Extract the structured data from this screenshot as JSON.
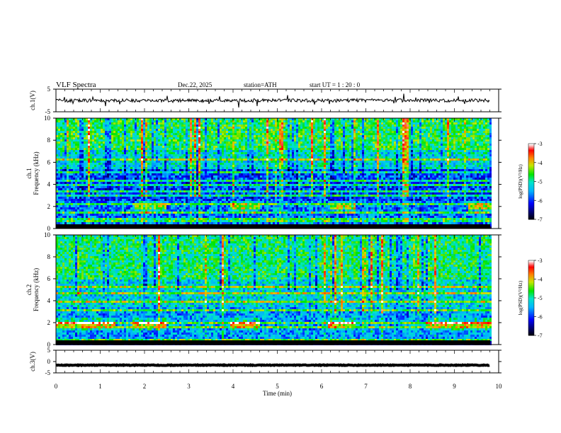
{
  "header": {
    "title": "VLF  Spectra",
    "date": "Dec.22, 2025",
    "station": "station=ATH",
    "start_ut": "start  UT  =   1 : 20 : 0"
  },
  "chart_data": [
    {
      "id": "ch1-waveform",
      "type": "line",
      "ylabel": "ch.1(V)",
      "ylim": [
        -5,
        5
      ],
      "yticks": [
        "5",
        "-5"
      ],
      "xlim": [
        0,
        10
      ],
      "x_end": 9.8,
      "baseline": 0,
      "amplitude": 1.5,
      "series_color": "#000000"
    },
    {
      "id": "ch1-spectrogram",
      "type": "heatmap",
      "ylabel": "ch.1\nFrequency (kHz)",
      "ylim": [
        0,
        10
      ],
      "yticks": [
        "0",
        "2",
        "4",
        "6",
        "8",
        "10"
      ],
      "xlim": [
        0,
        10
      ],
      "x_end": 9.8,
      "colorbar": {
        "label": "log(PSD)(V²/Hz)",
        "range": [
          -7,
          -3
        ],
        "ticks": [
          "-3",
          "-4",
          "-5",
          "-6",
          "-7"
        ]
      },
      "bands_khz": [
        0.3,
        0.7,
        1.0,
        1.6,
        2.3,
        3.0,
        3.4,
        4.0,
        4.5,
        5.2,
        6.4
      ],
      "banded_segments_min": [
        [
          1.75,
          2.45
        ],
        [
          3.9,
          4.6
        ],
        [
          6.15,
          6.75
        ],
        [
          9.3,
          9.8
        ]
      ]
    },
    {
      "id": "ch2-spectrogram",
      "type": "heatmap",
      "ylabel": "ch.2\nFrequency (kHz)",
      "ylim": [
        0,
        10
      ],
      "yticks": [
        "0",
        "2",
        "4",
        "6",
        "8",
        "10"
      ],
      "xlim": [
        0,
        10
      ],
      "x_end": 9.8,
      "colorbar": {
        "label": "log(PSD)(V²/Hz)",
        "range": [
          -7,
          -3
        ],
        "ticks": [
          "-3",
          "-4",
          "-5",
          "-6",
          "-7"
        ]
      },
      "bands_khz": [
        0.5,
        1.0,
        1.7,
        2.0,
        3.3,
        4.0,
        4.7,
        5.4
      ],
      "banded_segments_min": [
        [
          0,
          1.3
        ],
        [
          1.7,
          2.45
        ],
        [
          3.9,
          4.6
        ],
        [
          6.1,
          6.75
        ],
        [
          8.3,
          9.8
        ]
      ]
    },
    {
      "id": "ch3-waveform",
      "type": "line",
      "ylabel": "ch.3(V)",
      "ylim": [
        -5,
        5
      ],
      "yticks": [
        "5",
        "0",
        "-5"
      ],
      "xlim": [
        0,
        10
      ],
      "x_end": 9.8,
      "baseline": -1.6,
      "amplitude": 0.3,
      "series_color": "#000000"
    }
  ],
  "xaxis": {
    "label": "Time  (min)",
    "ticks": [
      "0",
      "1",
      "2",
      "3",
      "4",
      "5",
      "6",
      "7",
      "8",
      "9",
      "10"
    ]
  }
}
